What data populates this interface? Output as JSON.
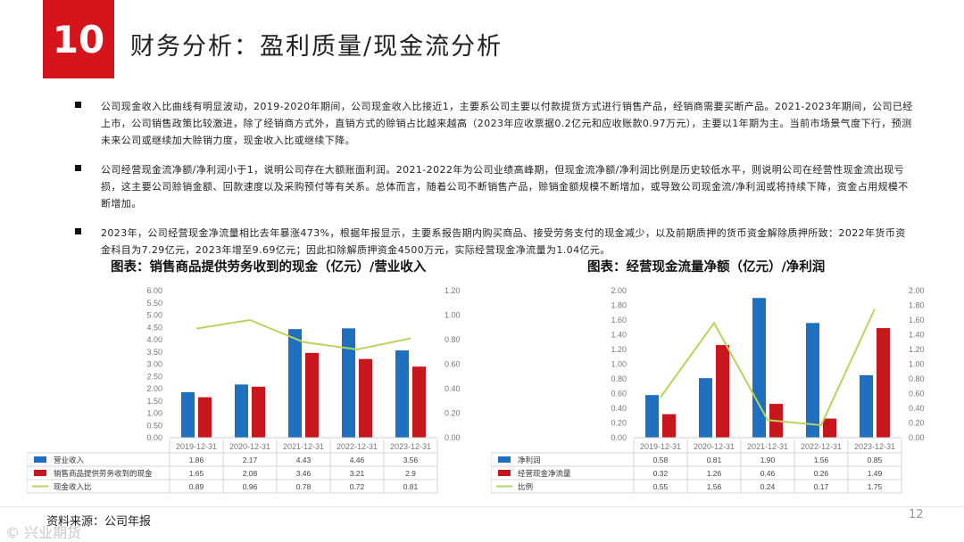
{
  "header": {
    "number": "10",
    "title": "财务分析：盈利质量/现金流分析"
  },
  "bullets": [
    "公司现金收入比曲线有明显波动，2019-2020年期间，公司现金收入比接近1，主要系公司主要以付款提货方式进行销售产品，经销商需要买断产品。2021-2023年期间，公司已经上市，公司销售政策比较激进，除了经销商方式外，直销方式的赊销占比越来越高（2023年应收票据0.2亿元和应收账款0.97万元），主要以1年期为主。当前市场景气度下行，预测未来公司或继续加大赊销力度，现金收入比或继续下降。",
    "公司经营现金流净额/净利润小于1，说明公司存在大额账面利润。2021-2022年为公司业绩高峰期，但现金流净额/净利润比例是历史较低水平，则说明公司在经营性现金流出现亏损，这主要公司赊销金额、回款速度以及采购预付等有关系。总体而言，随着公司不断销售产品，赊销金额规模不断增加，或导致公司现金流/净利润或将持续下降，资金占用规模不断增加。",
    "2023年，公司经营现金净流量相比去年暴涨473%，根据年报显示，主要系报告期内购买商品、接受劳务支付的现金减少，以及前期质押的货币资金解除质押所致：2022年货币资金科目为7.29亿元，2023年增至9.69亿元；因此扣除解质押资金4500万元，实际经营现金净流量为1.04亿元。"
  ],
  "colors": {
    "accent": "#d6141c",
    "blue": "#1f6fc0",
    "red": "#c8161d",
    "green": "#b7d45b"
  },
  "chart_data": [
    {
      "type": "bar",
      "title": "图表：销售商品提供劳务收到的现金（亿元）/营业收入",
      "categories": [
        "2019-12-31",
        "2020-12-31",
        "2021-12-31",
        "2022-12-31",
        "2023-12-31"
      ],
      "series": [
        {
          "name": "营业收入",
          "type": "bar",
          "axis": "left",
          "values": [
            1.86,
            2.17,
            4.43,
            4.46,
            3.56
          ],
          "labels": [
            "1.86",
            "2.17",
            "4.43",
            "4.46",
            "3.56"
          ]
        },
        {
          "name": "销售商品提供劳务收到的现金",
          "type": "bar",
          "axis": "left",
          "values": [
            1.65,
            2.08,
            3.46,
            3.21,
            2.9
          ],
          "labels": [
            "1.65",
            "2.08",
            "3.46",
            "3.21",
            "2.9"
          ]
        },
        {
          "name": "现金收入比",
          "type": "line",
          "axis": "right",
          "values": [
            0.89,
            0.96,
            0.78,
            0.72,
            0.81
          ],
          "labels": [
            "0.89",
            "0.96",
            "0.78",
            "0.72",
            "0.81"
          ]
        }
      ],
      "ylim": [
        0,
        6
      ],
      "yticks": [
        "0.00",
        "0.50",
        "1.00",
        "1.50",
        "2.00",
        "2.50",
        "3.00",
        "3.50",
        "4.00",
        "4.50",
        "5.00",
        "5.50",
        "6.00"
      ],
      "y2lim": [
        0,
        1.2
      ],
      "y2ticks": [
        "0.00",
        "0.20",
        "0.40",
        "0.60",
        "0.80",
        "1.00",
        "1.20"
      ],
      "grid": false,
      "legend": "data-table-below"
    },
    {
      "type": "bar",
      "title": "图表：经营现金流量净额（亿元）/净利润",
      "categories": [
        "2019-12-31",
        "2020-12-31",
        "2021-12-31",
        "2022-12-31",
        "2023-12-31"
      ],
      "series": [
        {
          "name": "净利润",
          "type": "bar",
          "axis": "left",
          "values": [
            0.58,
            0.81,
            1.9,
            1.56,
            0.85
          ],
          "labels": [
            "0.58",
            "0.81",
            "1.90",
            "1.56",
            "0.85"
          ]
        },
        {
          "name": "经营现金净流量",
          "type": "bar",
          "axis": "left",
          "values": [
            0.32,
            1.26,
            0.46,
            0.26,
            1.49
          ],
          "labels": [
            "0.32",
            "1.26",
            "0.46",
            "0.26",
            "1.49"
          ]
        },
        {
          "name": "比例",
          "type": "line",
          "axis": "right",
          "values": [
            0.55,
            1.56,
            0.24,
            0.17,
            1.75
          ],
          "labels": [
            "0.55",
            "1.56",
            "0.24",
            "0.17",
            "1.75"
          ]
        }
      ],
      "ylim": [
        0,
        2
      ],
      "yticks": [
        "0.00",
        "0.20",
        "0.40",
        "0.60",
        "0.80",
        "1.00",
        "1.20",
        "1.40",
        "1.60",
        "1.80",
        "2.00"
      ],
      "y2lim": [
        0,
        2
      ],
      "y2ticks": [
        "0.00",
        "0.20",
        "0.40",
        "0.60",
        "0.80",
        "1.00",
        "1.20",
        "1.40",
        "1.60",
        "1.80",
        "2.00"
      ],
      "grid": false,
      "legend": "data-table-below"
    }
  ],
  "footer": {
    "source": "资料来源：公司年报",
    "watermark": "© 兴业期货",
    "page_number": "12"
  }
}
